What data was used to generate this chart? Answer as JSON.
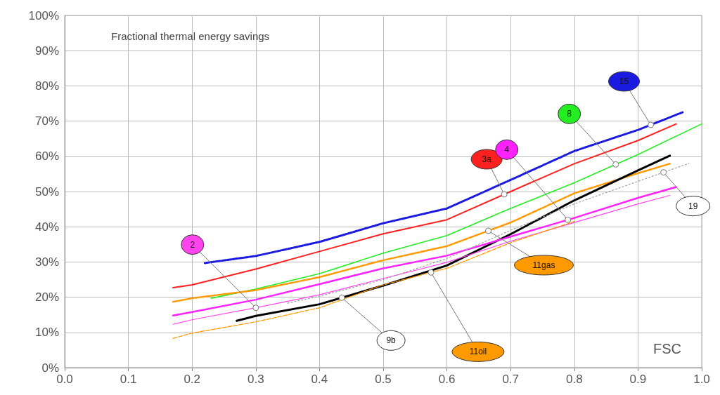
{
  "chart_data": {
    "type": "line",
    "title": "Fractional thermal energy savings",
    "xlabel": "FSC",
    "xlim": [
      0,
      1
    ],
    "xticks": [
      {
        "value": 0,
        "label": "0.0"
      },
      0.1,
      0.2,
      0.3,
      0.4,
      0.5,
      0.6,
      0.7,
      0.8,
      0.9,
      {
        "value": 1,
        "label": "1.0"
      }
    ],
    "ylim": [
      0,
      100
    ],
    "yticks": [
      {
        "value": 0,
        "label": "0%"
      },
      {
        "value": 10,
        "label": "10%"
      },
      {
        "value": 20,
        "label": "20%"
      },
      {
        "value": 30,
        "label": "30%"
      },
      {
        "value": 40,
        "label": "40%"
      },
      {
        "value": 50,
        "label": "50%"
      },
      {
        "value": 60,
        "label": "60%"
      },
      {
        "value": 70,
        "label": "70%"
      },
      {
        "value": 80,
        "label": "80%"
      },
      {
        "value": 90,
        "label": "90%"
      },
      {
        "value": 100,
        "label": "100%"
      }
    ],
    "grid": true,
    "marker": "none",
    "series": [
      {
        "name": "15",
        "color": "#1a1ae0",
        "line_style": "dashed",
        "x": [
          0.22,
          0.3,
          0.4,
          0.5,
          0.6,
          0.7,
          0.8,
          0.9,
          0.97
        ],
        "values": [
          29.7,
          31.7,
          35.7,
          41,
          45.2,
          53.3,
          61.5,
          67.5,
          72.5
        ]
      },
      {
        "name": "3a",
        "color": "#ff2020",
        "line_style": "solid",
        "x": [
          0.17,
          0.2,
          0.3,
          0.4,
          0.5,
          0.6,
          0.7,
          0.8,
          0.9,
          0.96
        ],
        "values": [
          22.7,
          23.5,
          28,
          33,
          38,
          42,
          50,
          57.9,
          64.5,
          69.2
        ]
      },
      {
        "name": "8",
        "color": "#22ee22",
        "line_style": "solid",
        "x": [
          0.23,
          0.3,
          0.4,
          0.5,
          0.6,
          0.7,
          0.8,
          0.9,
          1.0
        ],
        "values": [
          19.7,
          22.3,
          26.7,
          32.5,
          37.5,
          45.2,
          52.5,
          60.5,
          69.2
        ]
      },
      {
        "name": "11gas",
        "color": "#ff9900",
        "line_style": "dashed",
        "x": [
          0.17,
          0.2,
          0.3,
          0.4,
          0.5,
          0.6,
          0.7,
          0.8,
          0.9,
          0.95
        ],
        "values": [
          18.7,
          19.7,
          22,
          25.7,
          30.5,
          34.5,
          41.2,
          49.5,
          55.2,
          57.9
        ]
      },
      {
        "name": "9b",
        "color": "#000000",
        "line_style": "solid",
        "x": [
          0.27,
          0.3,
          0.4,
          0.5,
          0.6,
          0.7,
          0.8,
          0.9,
          0.95
        ],
        "values": [
          13.3,
          14.7,
          18,
          23.3,
          29,
          37.9,
          47.5,
          56,
          60.2
        ]
      },
      {
        "name": "4",
        "color": "#ff22ff",
        "line_style": "solid",
        "x": [
          0.17,
          0.2,
          0.3,
          0.4,
          0.5,
          0.6,
          0.7,
          0.8,
          0.9,
          0.96
        ],
        "values": [
          14.8,
          15.8,
          19.3,
          23.7,
          28.2,
          31.8,
          37.2,
          42.5,
          48.2,
          51.3
        ]
      },
      {
        "name": "2",
        "color": "#ff44ee",
        "line_style": "solid",
        "x": [
          0.17,
          0.2,
          0.3,
          0.4,
          0.5,
          0.6,
          0.7,
          0.8,
          0.9,
          0.95
        ],
        "values": [
          12.3,
          13.6,
          17,
          20.7,
          25.3,
          29.9,
          35.9,
          41.2,
          46.5,
          48.9
        ]
      },
      {
        "name": "11oil",
        "color": "#ff9900",
        "line_style": "dashed",
        "x": [
          0.17,
          0.2,
          0.3,
          0.4,
          0.5,
          0.6,
          0.7,
          0.8
        ],
        "values": [
          8.3,
          9.8,
          13,
          17,
          23.5,
          28.2,
          35.5,
          41.5
        ]
      },
      {
        "name": "19",
        "color": "#a0a0a0",
        "line_style": "dotted",
        "x": [
          0.35,
          0.4,
          0.5,
          0.6,
          0.7,
          0.8,
          0.9,
          0.98
        ],
        "values": [
          18.3,
          20.3,
          25,
          31,
          39,
          46.5,
          52.9,
          58
        ]
      }
    ]
  }
}
